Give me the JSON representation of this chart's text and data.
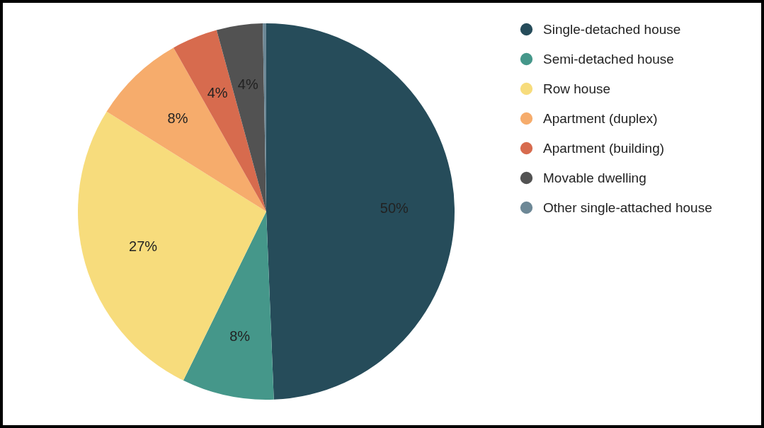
{
  "chart_data": {
    "type": "pie",
    "categories": [
      "Single-detached house",
      "Semi-detached house",
      "Row house",
      "Apartment (duplex)",
      "Apartment (building)",
      "Movable dwelling",
      "Other single-attached house"
    ],
    "values": [
      50,
      8,
      27,
      8,
      4,
      4,
      0.3
    ],
    "colors": [
      "#264c5a",
      "#45978a",
      "#f7dc7c",
      "#f6ac6c",
      "#d76b4e",
      "#525252",
      "#6d8896"
    ],
    "value_labels": [
      "50%",
      "8%",
      "27%",
      "8%",
      "4%",
      "4%",
      null
    ],
    "legend": "top right"
  }
}
